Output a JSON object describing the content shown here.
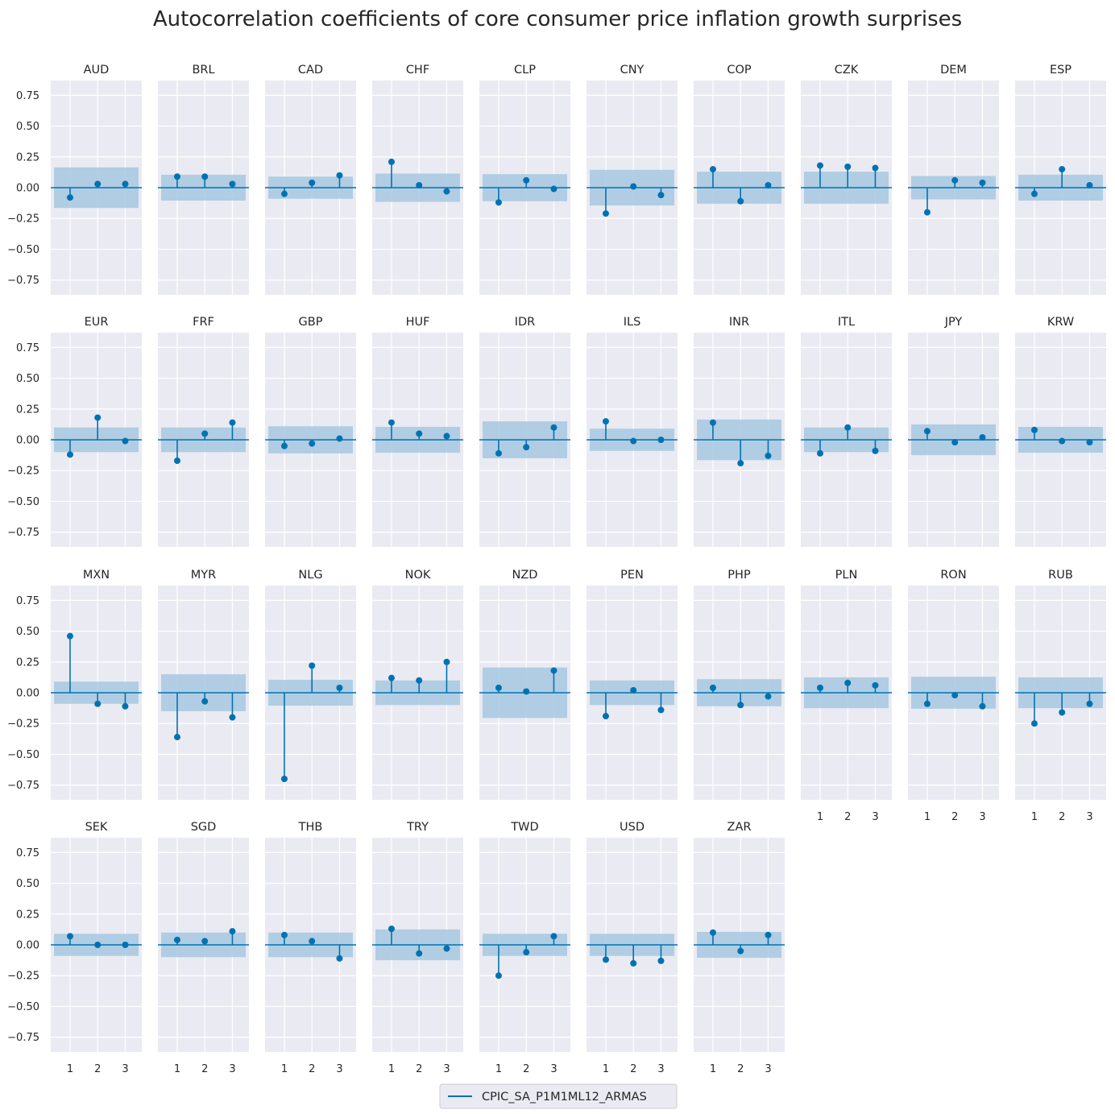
{
  "chart_data": {
    "type": "stem",
    "title": "Autocorrelation coefficients of core consumer price inflation growth surprises",
    "xlabel": "",
    "ylabel": "",
    "x_ticks": [
      1,
      2,
      3
    ],
    "y_ticks": [
      0.75,
      0.5,
      0.25,
      0.0,
      -0.25,
      -0.5,
      -0.75
    ],
    "y_tick_labels": [
      "0.75",
      "0.50",
      "0.25",
      "0.00",
      "−0.25",
      "−0.50",
      "−0.75"
    ],
    "ylim": [
      -0.87,
      0.87
    ],
    "xlim": [
      0.3,
      3.6
    ],
    "grid": true,
    "legend": {
      "position": "bottom-center",
      "series": [
        "CPIC_SA_P1M1ML12_ARMAS"
      ]
    },
    "colors": {
      "stem": "#0072b2",
      "band": "#a6c8e0",
      "background": "#eaeaf2",
      "grid": "#ffffff"
    },
    "layout": {
      "columns": 10,
      "rows": 4
    },
    "panels": [
      {
        "name": "AUD",
        "band": 0.165,
        "values": [
          -0.08,
          0.03,
          0.03
        ]
      },
      {
        "name": "BRL",
        "band": 0.105,
        "values": [
          0.09,
          0.09,
          0.03
        ]
      },
      {
        "name": "CAD",
        "band": 0.09,
        "values": [
          -0.05,
          0.04,
          0.1
        ]
      },
      {
        "name": "CHF",
        "band": 0.115,
        "values": [
          0.21,
          0.02,
          -0.03
        ]
      },
      {
        "name": "CLP",
        "band": 0.11,
        "values": [
          -0.12,
          0.06,
          -0.01
        ]
      },
      {
        "name": "CNY",
        "band": 0.145,
        "values": [
          -0.21,
          0.01,
          -0.06
        ]
      },
      {
        "name": "COP",
        "band": 0.13,
        "values": [
          0.15,
          -0.11,
          0.02
        ]
      },
      {
        "name": "CZK",
        "band": 0.13,
        "values": [
          0.18,
          0.17,
          0.16
        ]
      },
      {
        "name": "DEM",
        "band": 0.095,
        "values": [
          -0.2,
          0.06,
          0.04
        ]
      },
      {
        "name": "ESP",
        "band": 0.105,
        "values": [
          -0.05,
          0.15,
          0.02
        ]
      },
      {
        "name": "EUR",
        "band": 0.1,
        "values": [
          -0.12,
          0.18,
          -0.01
        ]
      },
      {
        "name": "FRF",
        "band": 0.1,
        "values": [
          -0.17,
          0.05,
          0.14
        ]
      },
      {
        "name": "GBP",
        "band": 0.11,
        "values": [
          -0.05,
          -0.03,
          0.01
        ]
      },
      {
        "name": "HUF",
        "band": 0.105,
        "values": [
          0.14,
          0.05,
          0.03
        ]
      },
      {
        "name": "IDR",
        "band": 0.15,
        "values": [
          -0.11,
          -0.06,
          0.1
        ]
      },
      {
        "name": "ILS",
        "band": 0.09,
        "values": [
          0.15,
          -0.01,
          0.0
        ]
      },
      {
        "name": "INR",
        "band": 0.165,
        "values": [
          0.14,
          -0.19,
          -0.13
        ]
      },
      {
        "name": "ITL",
        "band": 0.1,
        "values": [
          -0.11,
          0.1,
          -0.09
        ]
      },
      {
        "name": "JPY",
        "band": 0.125,
        "values": [
          0.07,
          -0.02,
          0.02
        ]
      },
      {
        "name": "KRW",
        "band": 0.105,
        "values": [
          0.08,
          -0.01,
          -0.02
        ]
      },
      {
        "name": "MXN",
        "band": 0.09,
        "values": [
          0.46,
          -0.09,
          -0.11
        ]
      },
      {
        "name": "MYR",
        "band": 0.15,
        "values": [
          -0.36,
          -0.07,
          -0.2
        ]
      },
      {
        "name": "NLG",
        "band": 0.105,
        "values": [
          -0.7,
          0.22,
          0.04
        ]
      },
      {
        "name": "NOK",
        "band": 0.1,
        "values": [
          0.12,
          0.1,
          0.25
        ]
      },
      {
        "name": "NZD",
        "band": 0.205,
        "values": [
          0.04,
          0.01,
          0.18
        ]
      },
      {
        "name": "PEN",
        "band": 0.1,
        "values": [
          -0.19,
          0.02,
          -0.14
        ]
      },
      {
        "name": "PHP",
        "band": 0.11,
        "values": [
          0.04,
          -0.1,
          -0.03
        ]
      },
      {
        "name": "PLN",
        "band": 0.125,
        "values": [
          0.04,
          0.08,
          0.06
        ]
      },
      {
        "name": "RON",
        "band": 0.13,
        "values": [
          -0.09,
          -0.02,
          -0.11
        ]
      },
      {
        "name": "RUB",
        "band": 0.125,
        "values": [
          -0.25,
          -0.16,
          -0.09
        ]
      },
      {
        "name": "SEK",
        "band": 0.09,
        "values": [
          0.07,
          0.0,
          0.0
        ]
      },
      {
        "name": "SGD",
        "band": 0.1,
        "values": [
          0.04,
          0.03,
          0.11
        ]
      },
      {
        "name": "THB",
        "band": 0.1,
        "values": [
          0.08,
          0.03,
          -0.11
        ]
      },
      {
        "name": "TRY",
        "band": 0.125,
        "values": [
          0.13,
          -0.07,
          -0.03
        ]
      },
      {
        "name": "TWD",
        "band": 0.09,
        "values": [
          -0.25,
          -0.06,
          0.07
        ]
      },
      {
        "name": "USD",
        "band": 0.09,
        "values": [
          -0.12,
          -0.15,
          -0.13
        ]
      },
      {
        "name": "ZAR",
        "band": 0.105,
        "values": [
          0.1,
          -0.05,
          0.08
        ]
      }
    ]
  }
}
